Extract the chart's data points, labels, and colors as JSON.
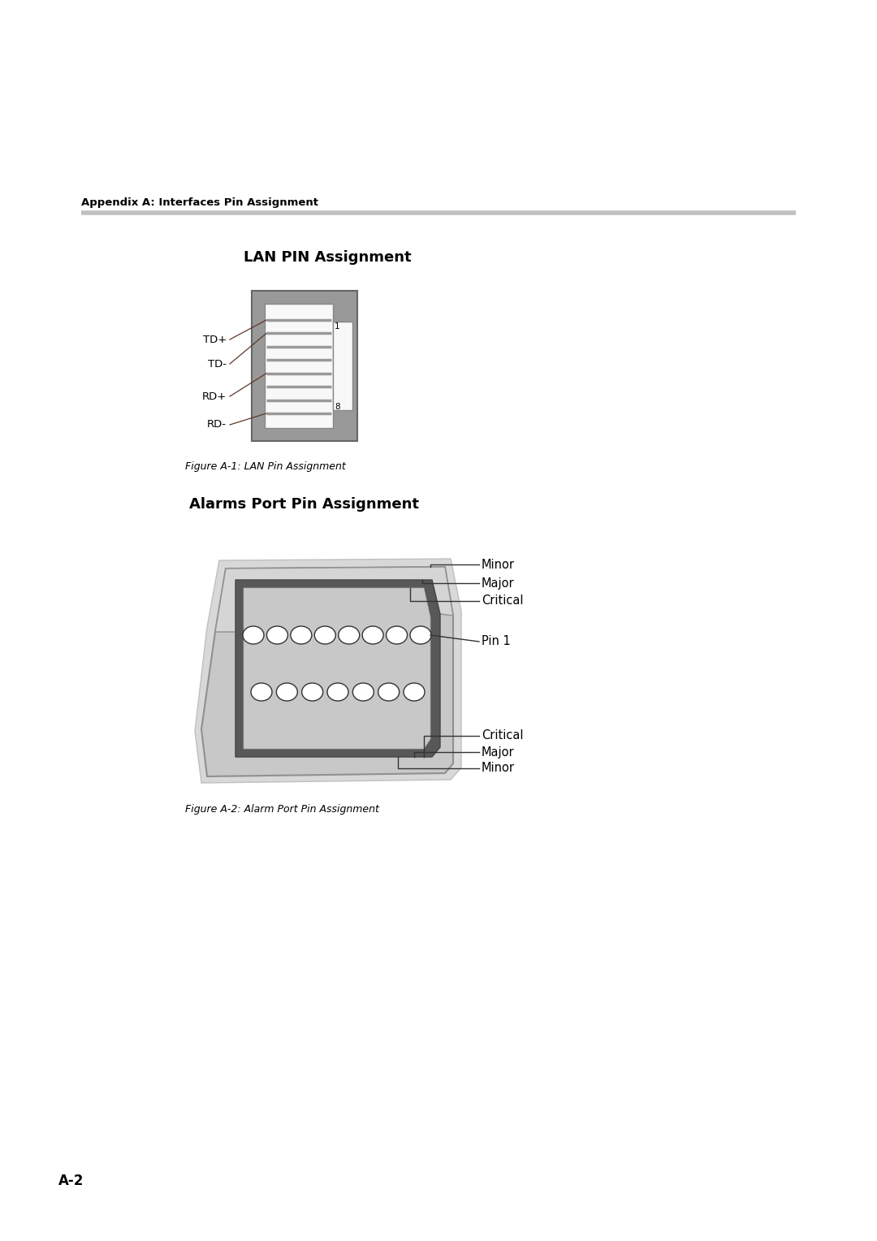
{
  "bg_color": "#ffffff",
  "header_text": "Appendix A: Interfaces Pin Assignment",
  "header_line_color": "#c0c0c0",
  "section1_title": "LAN PIN Assignment",
  "section2_title": "Alarms Port Pin Assignment",
  "fig1_caption": "Figure A-1: LAN Pin Assignment",
  "fig2_caption": "Figure A-2: Alarm Port Pin Assignment",
  "page_label": "A-2",
  "lan_labels_left": [
    "TD+",
    "TD-",
    "RD+",
    "RD-"
  ],
  "lan_label1": "1",
  "lan_label8": "8",
  "alarm_top_labels": [
    "Minor",
    "Major",
    "Critical"
  ],
  "alarm_bottom_labels": [
    "Critical",
    "Major",
    "Minor"
  ],
  "alarm_pin1_label": "Pin 1",
  "line_color": "#555555",
  "annotation_line_color": "#5a3a2a"
}
